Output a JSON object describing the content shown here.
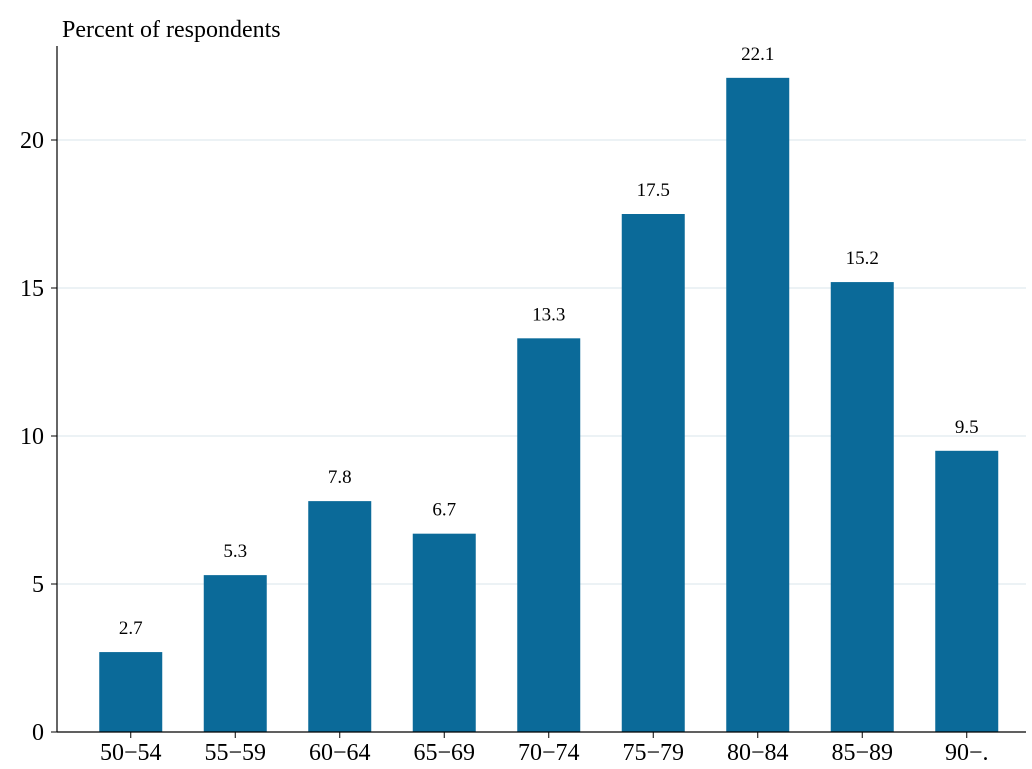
{
  "chart_data": {
    "type": "bar",
    "title": "",
    "xlabel": "",
    "ylabel": "Percent of respondents",
    "categories": [
      "50−54",
      "55−59",
      "60−64",
      "65−69",
      "70−74",
      "75−79",
      "80−84",
      "85−89",
      "90−."
    ],
    "values": [
      2.7,
      5.3,
      7.8,
      6.7,
      13.3,
      17.5,
      22.1,
      15.2,
      9.5
    ],
    "data_labels": [
      "2.7",
      "5.3",
      "7.8",
      "6.7",
      "13.3",
      "17.5",
      "22.1",
      "15.2",
      "9.5"
    ],
    "ylim": [
      0,
      23
    ],
    "yticks": [
      0,
      5,
      10,
      15,
      20
    ],
    "grid": "horizontal",
    "legend": "none",
    "colors": {
      "bar": "#0b6a99",
      "grid": "#e6eef2",
      "axis": "#000000"
    }
  }
}
